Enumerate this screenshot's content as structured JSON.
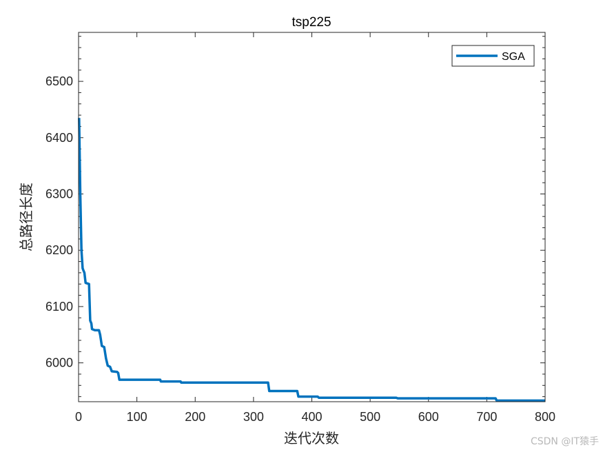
{
  "chart_data": {
    "type": "line",
    "title": "tsp225",
    "xlabel": "迭代次数",
    "ylabel": "总路径长度",
    "xlim": [
      0,
      800
    ],
    "ylim": [
      5931,
      6587
    ],
    "xticks": [
      0,
      100,
      200,
      300,
      400,
      500,
      600,
      700,
      800
    ],
    "yticks": [
      6000,
      6100,
      6200,
      6300,
      6400,
      6500
    ],
    "grid": false,
    "legend_position": "northeast",
    "series": [
      {
        "name": "SGA",
        "color": "#0072BD",
        "x": [
          1,
          3,
          5,
          7,
          8,
          10,
          12,
          18,
          19,
          20,
          22,
          23,
          28,
          35,
          37,
          40,
          44,
          47,
          50,
          54,
          57,
          66,
          68,
          70,
          140,
          141,
          175,
          176,
          325,
          327,
          375,
          377,
          410,
          412,
          545,
          547,
          715,
          717,
          800
        ],
        "y": [
          6435,
          6300,
          6200,
          6168,
          6165,
          6160,
          6142,
          6140,
          6105,
          6075,
          6070,
          6060,
          6058,
          6058,
          6050,
          6030,
          6028,
          6008,
          5995,
          5993,
          5985,
          5984,
          5982,
          5970,
          5970,
          5967,
          5967,
          5965,
          5965,
          5950,
          5950,
          5940,
          5940,
          5938,
          5938,
          5937,
          5937,
          5933,
          5933
        ]
      }
    ]
  },
  "watermark": "CSDN @IT猿手"
}
